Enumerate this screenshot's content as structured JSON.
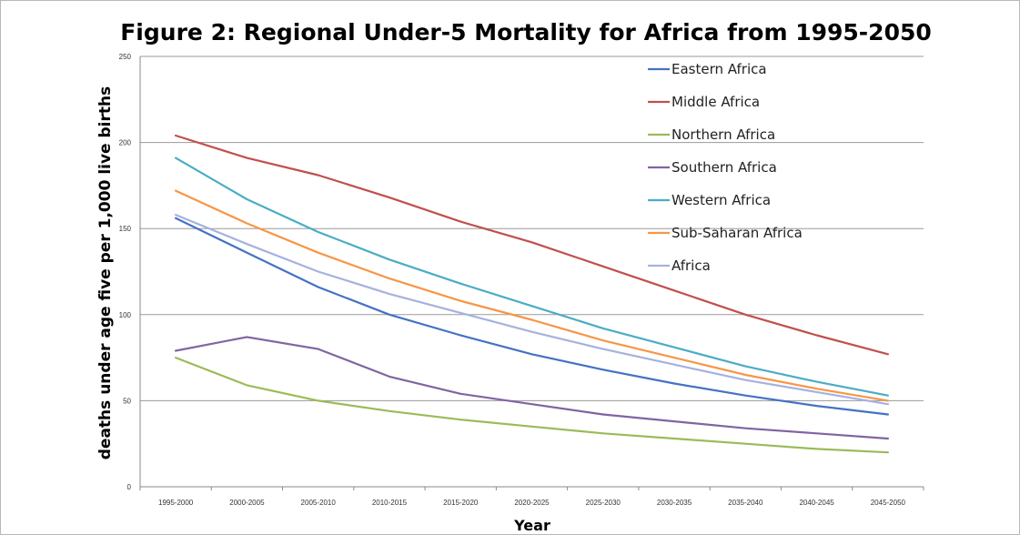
{
  "chart_data": {
    "type": "line",
    "title": "Figure 2: Regional Under-5 Mortality for Africa  from 1995-2050",
    "xlabel": "Year",
    "ylabel": "deaths under age five per 1,000 live births",
    "ylim": [
      0,
      250
    ],
    "yticks": [
      0,
      50,
      100,
      150,
      200,
      250
    ],
    "grid": true,
    "legend_position": "top-right",
    "categories": [
      "1995-2000",
      "2000-2005",
      "2005-2010",
      "2010-2015",
      "2015-2020",
      "2020-2025",
      "2025-2030",
      "2030-2035",
      "2035-2040",
      "2040-2045",
      "2045-2050"
    ],
    "series": [
      {
        "name": "Eastern Africa",
        "color": "#4472c4",
        "values": [
          156,
          136,
          116,
          100,
          88,
          77,
          68,
          60,
          53,
          47,
          42
        ]
      },
      {
        "name": "Middle Africa",
        "color": "#c0504d",
        "values": [
          204,
          191,
          181,
          168,
          154,
          142,
          128,
          114,
          100,
          88,
          77
        ]
      },
      {
        "name": "Northern Africa",
        "color": "#9bbb59",
        "values": [
          75,
          59,
          50,
          44,
          39,
          35,
          31,
          28,
          25,
          22,
          20
        ]
      },
      {
        "name": "Southern Africa",
        "color": "#8064a2",
        "values": [
          79,
          87,
          80,
          64,
          54,
          48,
          42,
          38,
          34,
          31,
          28
        ]
      },
      {
        "name": "Western Africa",
        "color": "#4bacc6",
        "values": [
          191,
          167,
          148,
          132,
          118,
          105,
          92,
          81,
          70,
          61,
          53
        ]
      },
      {
        "name": "Sub-Saharan Africa",
        "color": "#f79646",
        "values": [
          172,
          153,
          136,
          121,
          108,
          97,
          85,
          75,
          65,
          57,
          50
        ]
      },
      {
        "name": "Africa",
        "color": "#a5b2de",
        "values": [
          158,
          141,
          125,
          112,
          101,
          90,
          80,
          71,
          62,
          55,
          48
        ]
      }
    ]
  }
}
